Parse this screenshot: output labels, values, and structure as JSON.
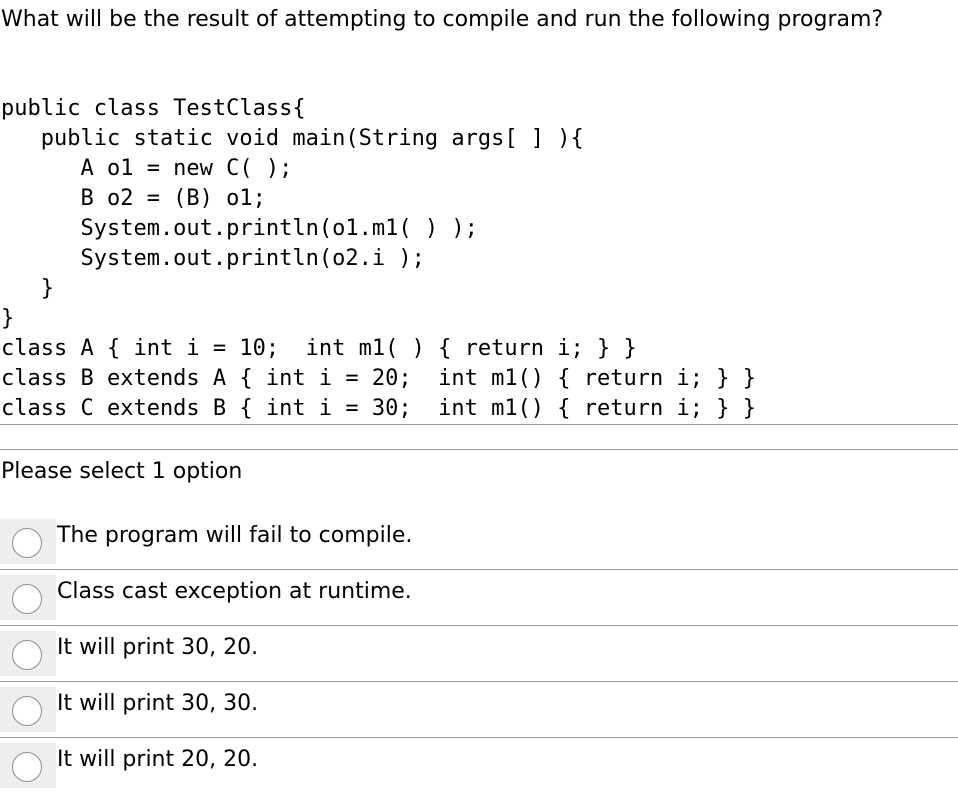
{
  "question": {
    "text": "What will be the result of attempting to compile and run the following program?"
  },
  "code": {
    "lines": [
      "public class TestClass{",
      "   public static void main(String args[ ] ){",
      "      A o1 = new C( );",
      "      B o2 = (B) o1;",
      "      System.out.println(o1.m1( ) );",
      "      System.out.println(o2.i );",
      "   }",
      "}",
      "class A { int i = 10;  int m1( ) { return i; } }",
      "class B extends A { int i = 20;  int m1() { return i; } }",
      "class C extends B { int i = 30;  int m1() { return i; } }"
    ]
  },
  "prompt": {
    "text": "Please select 1 option"
  },
  "options": [
    {
      "label": "The program will fail to compile."
    },
    {
      "label": "Class cast exception at runtime."
    },
    {
      "label": "It will print 30, 20."
    },
    {
      "label": "It will print 30, 30."
    },
    {
      "label": "It will print 20, 20."
    }
  ]
}
